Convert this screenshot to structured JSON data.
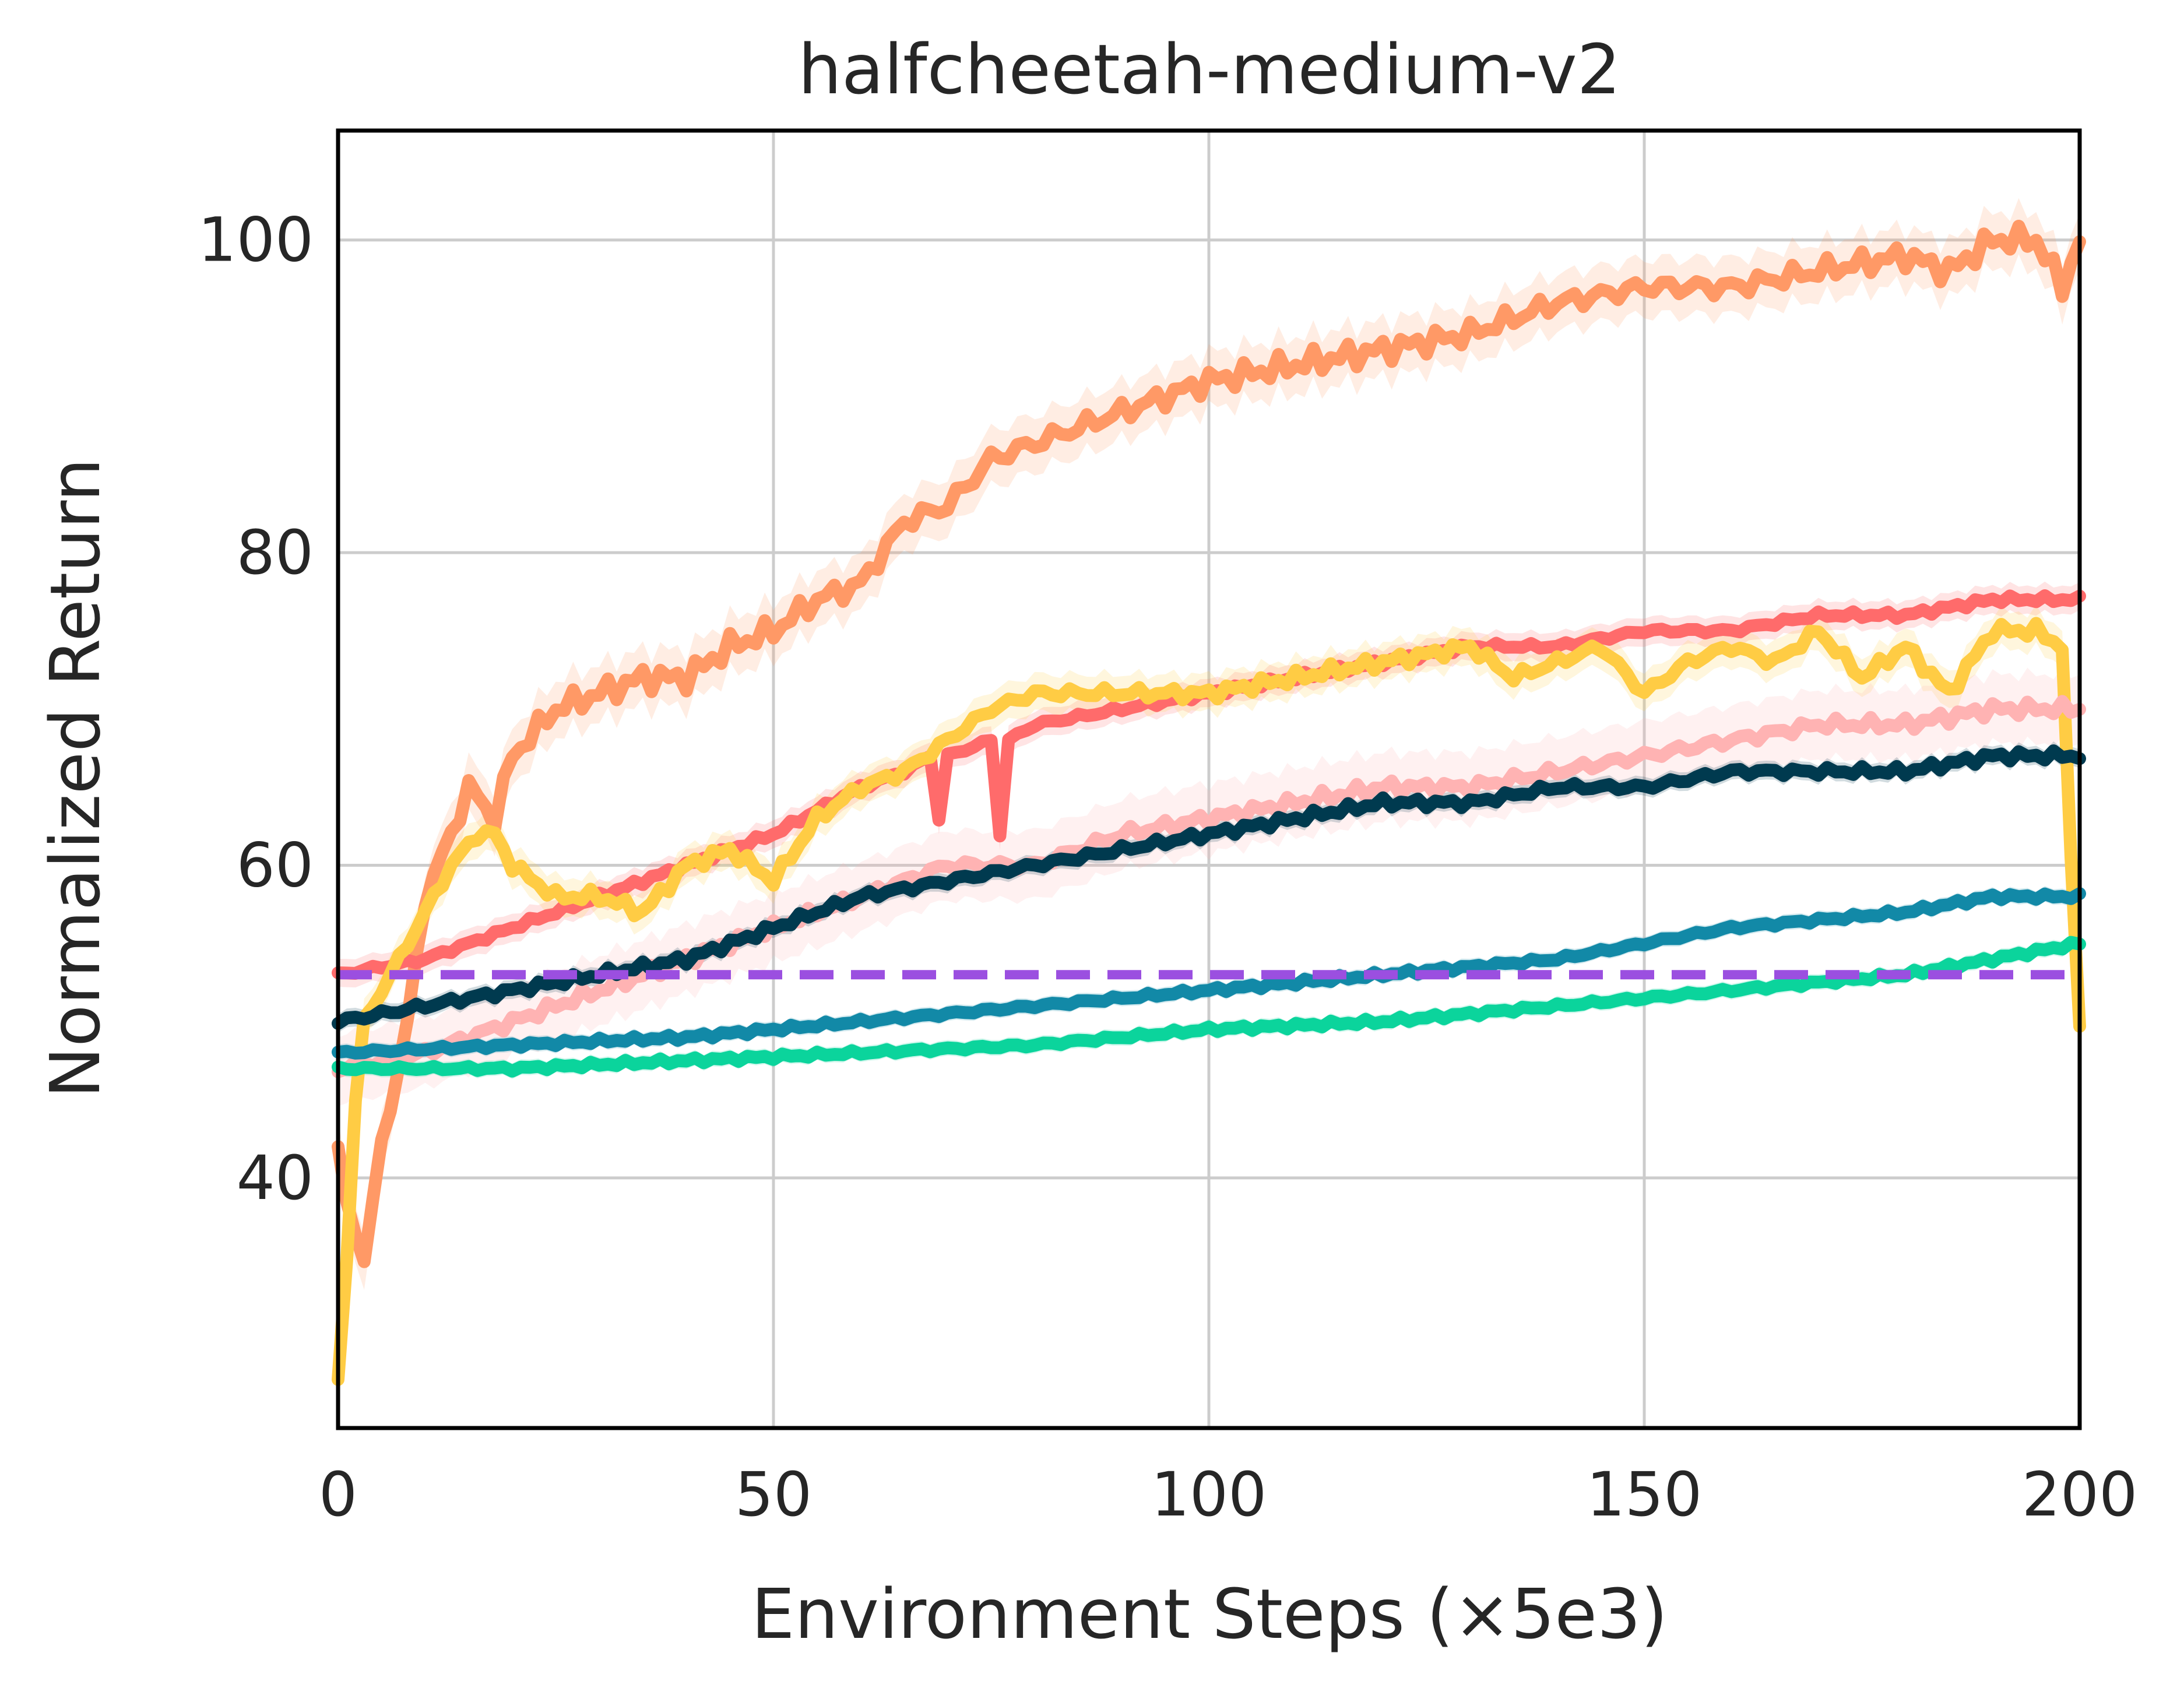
{
  "chart_data": {
    "type": "line",
    "title": "halfcheetah-medium-v2",
    "xlabel": "Environment Steps (×5e3)",
    "ylabel": "Normalized Return",
    "xlim": [
      0,
      200
    ],
    "ylim": [
      24,
      107
    ],
    "xticks": [
      0,
      50,
      100,
      150,
      200
    ],
    "xtick_labels": [
      "0",
      "50",
      "100",
      "150",
      "200"
    ],
    "yticks": [
      40,
      60,
      80,
      100
    ],
    "ytick_labels": [
      "40",
      "60",
      "80",
      "100"
    ],
    "grid": true,
    "legend": "none",
    "baseline": {
      "value": 53,
      "color": "#9b4fe0",
      "style": "dashed"
    },
    "series": [
      {
        "name": "orange",
        "color": "#ff9966",
        "band": 1.8,
        "points": [
          [
            0,
            42
          ],
          [
            1,
            38
          ],
          [
            3,
            35
          ],
          [
            5,
            42
          ],
          [
            8,
            50
          ],
          [
            10,
            58
          ],
          [
            13,
            62
          ],
          [
            15,
            65
          ],
          [
            18,
            63
          ],
          [
            20,
            67
          ],
          [
            25,
            70
          ],
          [
            30,
            71
          ],
          [
            35,
            72
          ],
          [
            40,
            72
          ],
          [
            45,
            74
          ],
          [
            50,
            75
          ],
          [
            55,
            77
          ],
          [
            60,
            78
          ],
          [
            65,
            82
          ],
          [
            70,
            83
          ],
          [
            75,
            86
          ],
          [
            80,
            87
          ],
          [
            85,
            88
          ],
          [
            90,
            89
          ],
          [
            95,
            90
          ],
          [
            100,
            91
          ],
          [
            110,
            92
          ],
          [
            120,
            93
          ],
          [
            130,
            94
          ],
          [
            140,
            96
          ],
          [
            150,
            97
          ],
          [
            160,
            97
          ],
          [
            170,
            98
          ],
          [
            180,
            99
          ],
          [
            185,
            98
          ],
          [
            190,
            100
          ],
          [
            195,
            100
          ],
          [
            198,
            97
          ],
          [
            200,
            100
          ]
        ]
      },
      {
        "name": "red",
        "color": "#ff6b6b",
        "band": 0.9,
        "points": [
          [
            0,
            53
          ],
          [
            10,
            54
          ],
          [
            20,
            56
          ],
          [
            30,
            58
          ],
          [
            40,
            60
          ],
          [
            50,
            62
          ],
          [
            60,
            65
          ],
          [
            65,
            66
          ],
          [
            68,
            67
          ],
          [
            69,
            63
          ],
          [
            70,
            67
          ],
          [
            75,
            68
          ],
          [
            76,
            62
          ],
          [
            77,
            68
          ],
          [
            80,
            69
          ],
          [
            90,
            70
          ],
          [
            100,
            71
          ],
          [
            110,
            72
          ],
          [
            120,
            73
          ],
          [
            130,
            74
          ],
          [
            140,
            74
          ],
          [
            150,
            75
          ],
          [
            160,
            75
          ],
          [
            170,
            76
          ],
          [
            180,
            76
          ],
          [
            190,
            77
          ],
          [
            200,
            77
          ]
        ]
      },
      {
        "name": "yellow",
        "color": "#ffcc44",
        "band": 1.2,
        "points": [
          [
            0,
            27
          ],
          [
            1,
            35
          ],
          [
            2,
            45
          ],
          [
            3,
            50
          ],
          [
            5,
            52
          ],
          [
            8,
            55
          ],
          [
            10,
            57
          ],
          [
            13,
            60
          ],
          [
            16,
            62
          ],
          [
            18,
            62
          ],
          [
            20,
            60
          ],
          [
            25,
            58
          ],
          [
            30,
            58
          ],
          [
            35,
            57
          ],
          [
            40,
            60
          ],
          [
            45,
            61
          ],
          [
            50,
            59
          ],
          [
            55,
            63
          ],
          [
            60,
            65
          ],
          [
            65,
            66
          ],
          [
            70,
            68
          ],
          [
            75,
            70
          ],
          [
            80,
            71
          ],
          [
            90,
            71
          ],
          [
            100,
            71
          ],
          [
            110,
            72
          ],
          [
            120,
            73
          ],
          [
            130,
            74
          ],
          [
            135,
            72
          ],
          [
            140,
            73
          ],
          [
            145,
            74
          ],
          [
            150,
            71
          ],
          [
            155,
            73
          ],
          [
            160,
            74
          ],
          [
            165,
            73
          ],
          [
            170,
            75
          ],
          [
            175,
            72
          ],
          [
            180,
            74
          ],
          [
            185,
            71
          ],
          [
            190,
            75
          ],
          [
            195,
            75
          ],
          [
            198,
            74
          ],
          [
            199,
            60
          ],
          [
            200,
            50
          ]
        ]
      },
      {
        "name": "pink",
        "color": "#ffb3b3",
        "band": 2.2,
        "points": [
          [
            0,
            47
          ],
          [
            10,
            48
          ],
          [
            20,
            50
          ],
          [
            30,
            52
          ],
          [
            40,
            54
          ],
          [
            50,
            56
          ],
          [
            60,
            58
          ],
          [
            70,
            60
          ],
          [
            80,
            60
          ],
          [
            90,
            62
          ],
          [
            100,
            63
          ],
          [
            110,
            64
          ],
          [
            120,
            65
          ],
          [
            130,
            65
          ],
          [
            140,
            66
          ],
          [
            150,
            67
          ],
          [
            160,
            68
          ],
          [
            170,
            69
          ],
          [
            180,
            69
          ],
          [
            190,
            70
          ],
          [
            200,
            70
          ]
        ]
      },
      {
        "name": "dark-navy",
        "color": "#003a4f",
        "band": 0.6,
        "points": [
          [
            0,
            50
          ],
          [
            10,
            51
          ],
          [
            20,
            52
          ],
          [
            30,
            53
          ],
          [
            40,
            54
          ],
          [
            50,
            56
          ],
          [
            60,
            58
          ],
          [
            70,
            59
          ],
          [
            80,
            60
          ],
          [
            90,
            61
          ],
          [
            100,
            62
          ],
          [
            110,
            63
          ],
          [
            120,
            64
          ],
          [
            130,
            64
          ],
          [
            140,
            65
          ],
          [
            150,
            65
          ],
          [
            160,
            66
          ],
          [
            170,
            66
          ],
          [
            180,
            66
          ],
          [
            190,
            67
          ],
          [
            200,
            67
          ]
        ]
      },
      {
        "name": "teal-blue",
        "color": "#1289a7",
        "band": 0.5,
        "points": [
          [
            0,
            48
          ],
          [
            20,
            48.5
          ],
          [
            40,
            49
          ],
          [
            60,
            50
          ],
          [
            80,
            51
          ],
          [
            100,
            52
          ],
          [
            120,
            53
          ],
          [
            140,
            54
          ],
          [
            150,
            55
          ],
          [
            160,
            56
          ],
          [
            170,
            56.5
          ],
          [
            180,
            57
          ],
          [
            190,
            58
          ],
          [
            200,
            58
          ]
        ]
      },
      {
        "name": "green",
        "color": "#0bd49c",
        "band": 0.5,
        "points": [
          [
            0,
            47
          ],
          [
            20,
            47
          ],
          [
            40,
            47.5
          ],
          [
            60,
            48
          ],
          [
            80,
            48.5
          ],
          [
            100,
            49.5
          ],
          [
            120,
            50
          ],
          [
            140,
            51
          ],
          [
            150,
            51.5
          ],
          [
            160,
            52
          ],
          [
            170,
            52.5
          ],
          [
            180,
            53
          ],
          [
            190,
            54
          ],
          [
            200,
            55
          ]
        ]
      }
    ]
  }
}
